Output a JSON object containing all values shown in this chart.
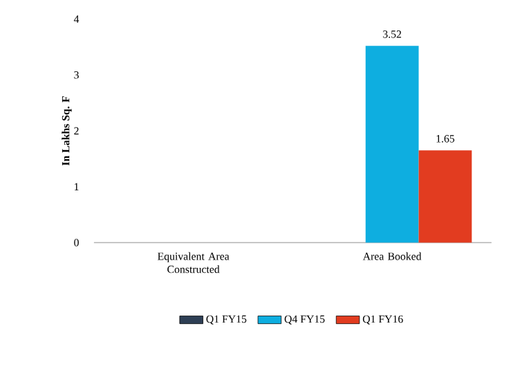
{
  "chart_data": {
    "type": "bar",
    "ylabel": "In Lakhs Sq. F",
    "categories": [
      "Equivalent Area Constructed",
      "Area Booked"
    ],
    "series": [
      {
        "name": "Q1 FY15",
        "color": "#2e3f55",
        "values": [
          null,
          null
        ]
      },
      {
        "name": "Q4 FY15",
        "color": "#0eaee0",
        "values": [
          null,
          3.52
        ],
        "value_labels": [
          null,
          "3.52"
        ]
      },
      {
        "name": "Q1 FY16",
        "color": "#e23c20",
        "values": [
          null,
          1.65
        ],
        "value_labels": [
          null,
          "1.65"
        ]
      }
    ],
    "ylim": [
      0,
      4
    ],
    "yticks": [
      0,
      1,
      2,
      3,
      4
    ],
    "grid": false,
    "legend": "bottom"
  }
}
